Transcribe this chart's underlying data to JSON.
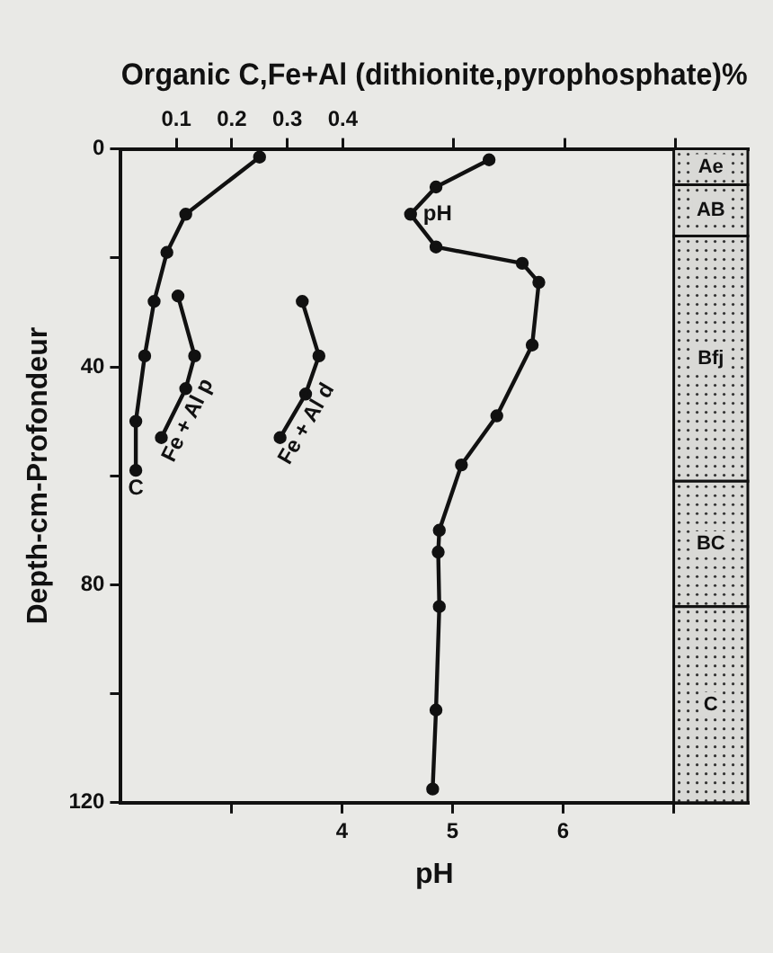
{
  "chart_data": {
    "type": "line",
    "x2label": "Organic C,Fe+Al (dithionite,pyrophosphate)%",
    "xlabel": "pH",
    "ylabel": "Depth-cm-Profondeur",
    "xlim": [
      2,
      7.67
    ],
    "xticks": [
      {
        "value": 3,
        "label": null
      },
      4,
      5,
      6,
      {
        "value": 7,
        "label": null
      }
    ],
    "x2lim": [
      0,
      1.13
    ],
    "x2ticks": [
      0.1,
      0.2,
      0.3,
      0.4,
      {
        "value": 0.6,
        "label": null
      },
      {
        "value": 0.8,
        "label": null
      },
      {
        "value": 1.0,
        "label": null
      }
    ],
    "ylim": [
      120,
      0
    ],
    "yticks": [
      0,
      {
        "value": 20,
        "label": null
      },
      40,
      {
        "value": 60,
        "label": null
      },
      80,
      {
        "value": 100,
        "label": null
      },
      120
    ],
    "series": [
      {
        "name": "C",
        "axis": "x2",
        "color": "#111111",
        "x": [
          0.25,
          0.117,
          0.083,
          0.06,
          0.043,
          0.027,
          0.027
        ],
        "values": [
          1.5,
          12,
          19,
          28,
          38,
          50,
          59
        ]
      },
      {
        "name": "Fe + Al p",
        "axis": "x2",
        "color": "#111111",
        "x": [
          0.103,
          0.133,
          0.117,
          0.073
        ],
        "values": [
          27,
          38,
          44,
          53
        ]
      },
      {
        "name": "Fe + Al d",
        "axis": "x2",
        "color": "#111111",
        "x": [
          0.327,
          0.357,
          0.333,
          0.287
        ],
        "values": [
          28,
          38,
          45,
          53
        ]
      },
      {
        "name": "pH",
        "color": "#111111",
        "x": [
          5.33,
          4.85,
          4.62,
          4.85,
          5.63,
          5.78,
          5.72,
          5.4,
          5.08,
          4.88,
          4.87,
          4.88,
          4.85,
          4.82
        ],
        "values": [
          2,
          7,
          12,
          18,
          21,
          24.5,
          36,
          49,
          58,
          70,
          74,
          84,
          103,
          117.5
        ]
      }
    ],
    "bands": [
      {
        "axis": "y",
        "from": 0,
        "to": 6.6,
        "label": "Ae",
        "color": "#d9d9d6"
      },
      {
        "axis": "y",
        "from": 6.6,
        "to": 16,
        "label": "AB",
        "color": "#d9d9d6"
      },
      {
        "axis": "y",
        "from": 16,
        "to": 61,
        "label": "Bfj",
        "color": "#d9d9d6"
      },
      {
        "axis": "y",
        "from": 61,
        "to": 84,
        "label": "BC",
        "color": "#d9d9d6"
      },
      {
        "axis": "y",
        "from": 84,
        "to": 120,
        "label": "C",
        "color": "#d9d9d6"
      }
    ],
    "marker": "circle",
    "line_style": "solid",
    "legend": false,
    "grid": false
  }
}
